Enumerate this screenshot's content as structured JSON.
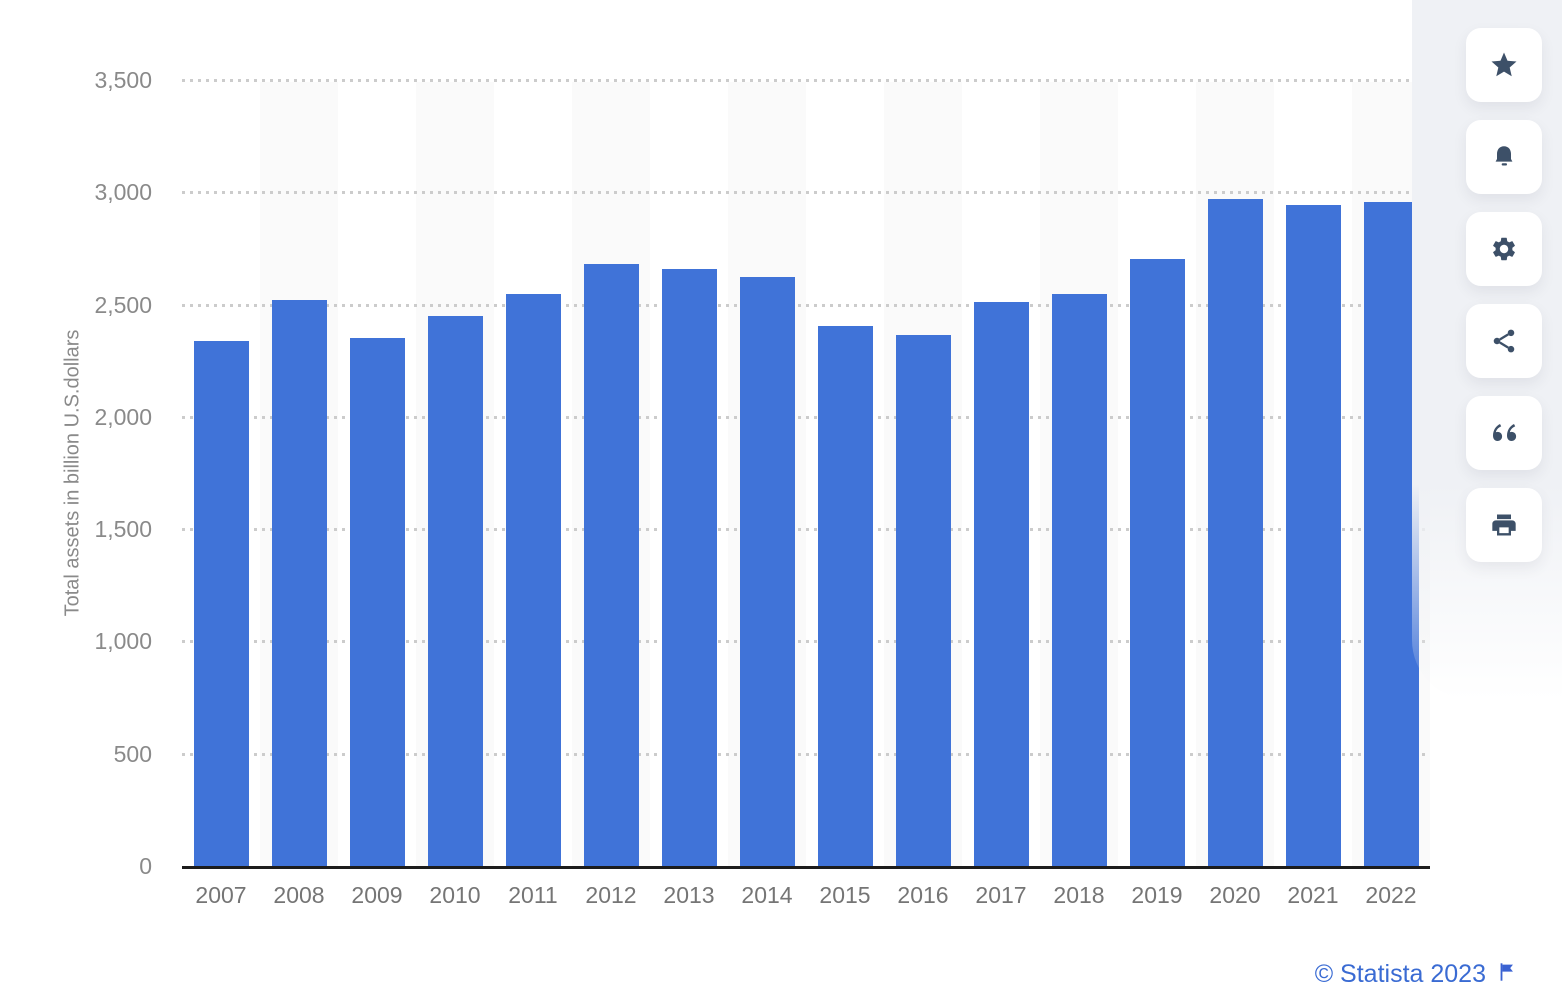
{
  "chart_data": {
    "type": "bar",
    "title": "",
    "xlabel": "",
    "ylabel": "Total assets in billion U.S.dollars",
    "categories": [
      "2007",
      "2008",
      "2009",
      "2010",
      "2011",
      "2012",
      "2013",
      "2014",
      "2015",
      "2016",
      "2017",
      "2018",
      "2019",
      "2020",
      "2021",
      "2022"
    ],
    "values": [
      2340,
      2520,
      2350,
      2450,
      2545,
      2680,
      2660,
      2625,
      2405,
      2365,
      2510,
      2545,
      2705,
      2970,
      2945,
      2955
    ],
    "ylim": [
      0,
      3500
    ],
    "yticks": [
      0,
      500,
      1000,
      1500,
      2000,
      2500,
      3000,
      3500
    ],
    "ytick_labels": [
      "0",
      "500",
      "1,000",
      "1,500",
      "2,000",
      "2,500",
      "3,000",
      "3,500"
    ],
    "grid": "horizontal-dotted",
    "legend": null,
    "bar_color": "#4073d8",
    "stripe_color": "#fafafa",
    "gridline_color": "#cccccc",
    "axis_text_color": "#8a8a8a"
  },
  "sidebar": {
    "buttons": [
      {
        "icon": "star-icon"
      },
      {
        "icon": "bell-icon"
      },
      {
        "icon": "gear-icon"
      },
      {
        "icon": "share-icon"
      },
      {
        "icon": "quote-icon"
      },
      {
        "icon": "print-icon"
      }
    ],
    "icon_color": "#3d5068"
  },
  "footer": {
    "copyright": "© Statista 2023",
    "flag_icon": "flag-icon",
    "link_color": "#3a6bd3"
  }
}
